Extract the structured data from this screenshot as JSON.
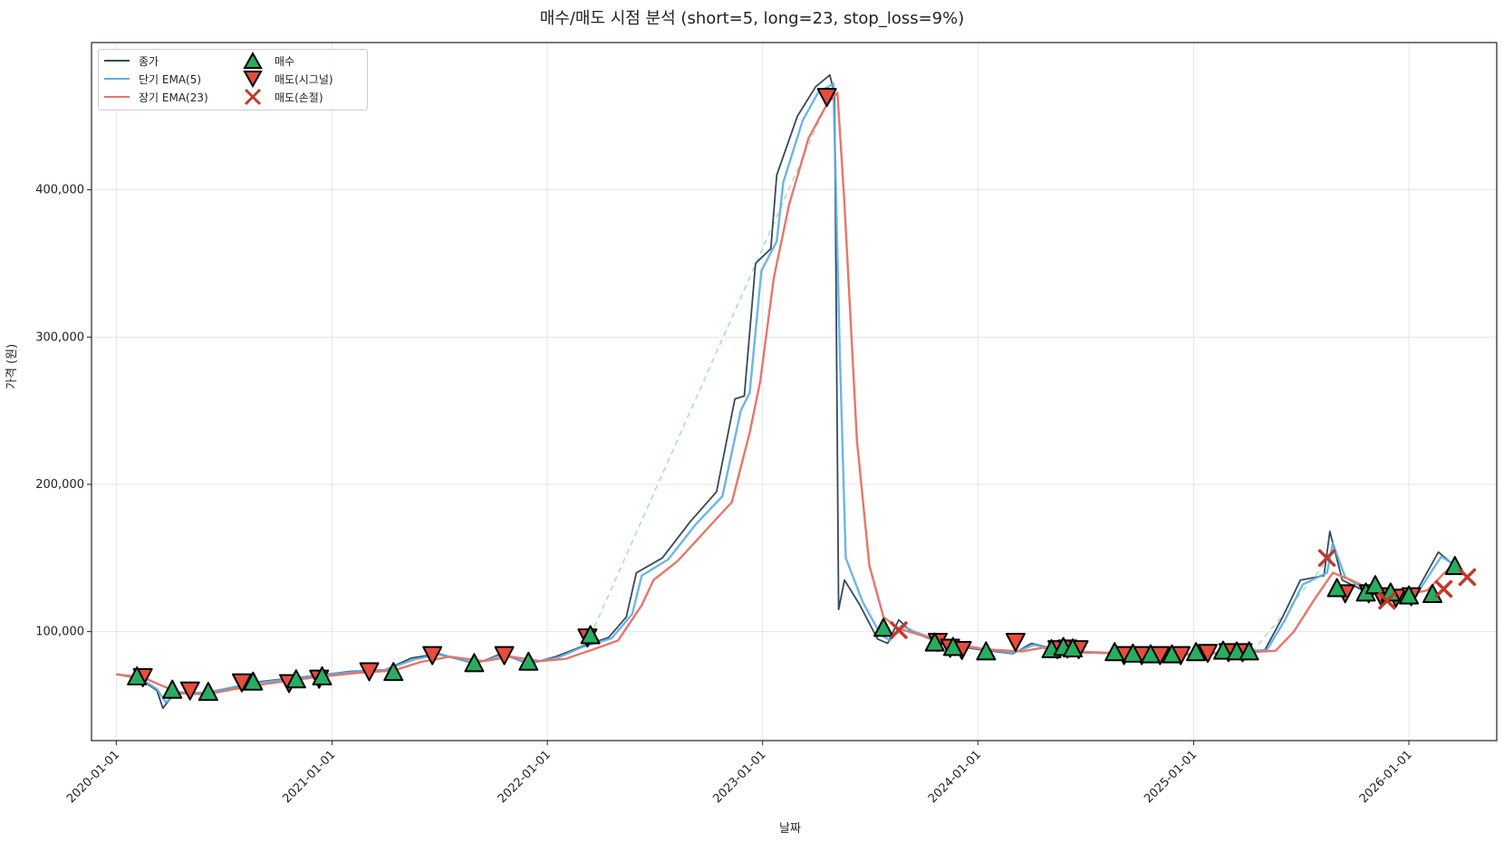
{
  "chart_data": {
    "type": "line",
    "title": "매수/매도 시점 분석 (short=5, long=23, stop_loss=9%)",
    "xlabel": "날짜",
    "ylabel": "가격 (원)",
    "xlim": [
      "2019-11-20",
      "2026-05-30"
    ],
    "ylim": [
      26000,
      500000
    ],
    "grid": true,
    "legend_position": "top-left",
    "x_ticks": [
      "2020-01-01",
      "2021-01-01",
      "2022-01-01",
      "2023-01-01",
      "2024-01-01",
      "2025-01-01",
      "2026-01-01"
    ],
    "y_ticks": [
      100000,
      200000,
      300000,
      400000
    ],
    "y_tick_labels": [
      "100,000",
      "200,000",
      "300,000",
      "400,000"
    ],
    "series": [
      {
        "name": "종가",
        "color": "#34495e",
        "points": [
          [
            "2020-01-01",
            71000
          ],
          [
            "2020-02-10",
            68000
          ],
          [
            "2020-03-10",
            60000
          ],
          [
            "2020-03-20",
            48000
          ],
          [
            "2020-04-10",
            59000
          ],
          [
            "2020-06-01",
            58000
          ],
          [
            "2020-07-15",
            62000
          ],
          [
            "2020-09-01",
            66000
          ],
          [
            "2020-10-15",
            68000
          ],
          [
            "2020-12-01",
            70000
          ],
          [
            "2021-02-01",
            73000
          ],
          [
            "2021-04-01",
            74000
          ],
          [
            "2021-05-15",
            82000
          ],
          [
            "2021-07-01",
            85000
          ],
          [
            "2021-09-01",
            78000
          ],
          [
            "2021-10-15",
            85000
          ],
          [
            "2021-12-01",
            78000
          ],
          [
            "2022-01-15",
            83000
          ],
          [
            "2022-03-01",
            90000
          ],
          [
            "2022-04-15",
            96000
          ],
          [
            "2022-05-15",
            110000
          ],
          [
            "2022-06-01",
            140000
          ],
          [
            "2022-07-15",
            150000
          ],
          [
            "2022-09-01",
            175000
          ],
          [
            "2022-10-15",
            195000
          ],
          [
            "2022-11-15",
            258000
          ],
          [
            "2022-12-01",
            260000
          ],
          [
            "2022-12-20",
            350000
          ],
          [
            "2023-01-15",
            360000
          ],
          [
            "2023-01-25",
            410000
          ],
          [
            "2023-03-01",
            450000
          ],
          [
            "2023-04-01",
            470000
          ],
          [
            "2023-04-25",
            478000
          ],
          [
            "2023-05-03",
            465000
          ],
          [
            "2023-05-10",
            115000
          ],
          [
            "2023-05-20",
            135000
          ],
          [
            "2023-06-15",
            118000
          ],
          [
            "2023-07-15",
            95000
          ],
          [
            "2023-08-01",
            92000
          ],
          [
            "2023-08-20",
            108000
          ],
          [
            "2023-09-10",
            100000
          ],
          [
            "2023-11-01",
            92000
          ],
          [
            "2024-01-01",
            88000
          ],
          [
            "2024-03-01",
            85000
          ],
          [
            "2024-04-01",
            92000
          ],
          [
            "2024-06-01",
            86000
          ],
          [
            "2024-09-01",
            85000
          ],
          [
            "2024-12-01",
            84000
          ],
          [
            "2025-03-01",
            86000
          ],
          [
            "2025-05-01",
            87000
          ],
          [
            "2025-06-01",
            110000
          ],
          [
            "2025-07-01",
            135000
          ],
          [
            "2025-08-10",
            138000
          ],
          [
            "2025-08-20",
            168000
          ],
          [
            "2025-09-10",
            135000
          ],
          [
            "2025-10-15",
            128000
          ],
          [
            "2025-12-01",
            122000
          ],
          [
            "2026-01-15",
            128000
          ],
          [
            "2026-02-20",
            154000
          ],
          [
            "2026-03-25",
            143000
          ]
        ]
      },
      {
        "name": "단기 EMA(5)",
        "color": "#5dade2",
        "points": [
          [
            "2020-01-01",
            71000
          ],
          [
            "2020-02-10",
            68500
          ],
          [
            "2020-03-10",
            61000
          ],
          [
            "2020-03-25",
            52000
          ],
          [
            "2020-04-15",
            58500
          ],
          [
            "2020-06-01",
            58500
          ],
          [
            "2020-07-15",
            62000
          ],
          [
            "2020-09-01",
            65500
          ],
          [
            "2020-10-15",
            67500
          ],
          [
            "2020-12-01",
            70000
          ],
          [
            "2021-02-01",
            72500
          ],
          [
            "2021-04-01",
            74000
          ],
          [
            "2021-05-20",
            81000
          ],
          [
            "2021-07-01",
            84500
          ],
          [
            "2021-09-01",
            78500
          ],
          [
            "2021-10-20",
            84500
          ],
          [
            "2021-12-01",
            78500
          ],
          [
            "2022-01-20",
            82500
          ],
          [
            "2022-03-01",
            89500
          ],
          [
            "2022-04-20",
            95500
          ],
          [
            "2022-05-25",
            112000
          ],
          [
            "2022-06-10",
            138000
          ],
          [
            "2022-07-25",
            149000
          ],
          [
            "2022-09-10",
            173000
          ],
          [
            "2022-10-25",
            192000
          ],
          [
            "2022-11-25",
            250000
          ],
          [
            "2022-12-10",
            262000
          ],
          [
            "2022-12-30",
            345000
          ],
          [
            "2023-01-25",
            365000
          ],
          [
            "2023-02-05",
            405000
          ],
          [
            "2023-03-10",
            447000
          ],
          [
            "2023-04-05",
            466000
          ],
          [
            "2023-05-01",
            472000
          ],
          [
            "2023-05-12",
            290000
          ],
          [
            "2023-05-22",
            150000
          ],
          [
            "2023-06-20",
            120000
          ],
          [
            "2023-07-20",
            98000
          ],
          [
            "2023-08-05",
            94000
          ],
          [
            "2023-08-25",
            104000
          ],
          [
            "2023-09-15",
            100000
          ],
          [
            "2023-11-01",
            93000
          ],
          [
            "2024-01-01",
            88500
          ],
          [
            "2024-03-01",
            85500
          ],
          [
            "2024-04-05",
            91000
          ],
          [
            "2024-06-01",
            86500
          ],
          [
            "2024-09-01",
            85000
          ],
          [
            "2024-12-01",
            84500
          ],
          [
            "2025-03-01",
            86000
          ],
          [
            "2025-05-05",
            87500
          ],
          [
            "2025-06-05",
            108000
          ],
          [
            "2025-07-05",
            132000
          ],
          [
            "2025-08-15",
            140000
          ],
          [
            "2025-08-25",
            160000
          ],
          [
            "2025-09-15",
            137000
          ],
          [
            "2025-10-20",
            128000
          ],
          [
            "2025-12-01",
            123000
          ],
          [
            "2026-01-20",
            129000
          ],
          [
            "2026-02-25",
            151000
          ],
          [
            "2026-03-25",
            144000
          ]
        ]
      },
      {
        "name": "장기 EMA(23)",
        "color": "#e8756a",
        "points": [
          [
            "2020-01-01",
            71000
          ],
          [
            "2020-02-15",
            69000
          ],
          [
            "2020-03-20",
            63000
          ],
          [
            "2020-04-20",
            58000
          ],
          [
            "2020-06-01",
            57500
          ],
          [
            "2020-07-20",
            61000
          ],
          [
            "2020-09-10",
            64500
          ],
          [
            "2020-10-25",
            67000
          ],
          [
            "2020-12-15",
            69500
          ],
          [
            "2021-02-15",
            72000
          ],
          [
            "2021-04-15",
            73500
          ],
          [
            "2021-06-01",
            79500
          ],
          [
            "2021-07-20",
            83000
          ],
          [
            "2021-09-15",
            80000
          ],
          [
            "2021-11-01",
            83000
          ],
          [
            "2021-12-20",
            80000
          ],
          [
            "2022-02-01",
            81500
          ],
          [
            "2022-03-20",
            88000
          ],
          [
            "2022-05-01",
            94000
          ],
          [
            "2022-06-10",
            118000
          ],
          [
            "2022-06-30",
            135000
          ],
          [
            "2022-08-10",
            148000
          ],
          [
            "2022-09-25",
            168000
          ],
          [
            "2022-11-10",
            188000
          ],
          [
            "2022-12-10",
            235000
          ],
          [
            "2022-12-28",
            270000
          ],
          [
            "2023-01-20",
            340000
          ],
          [
            "2023-02-15",
            390000
          ],
          [
            "2023-03-20",
            435000
          ],
          [
            "2023-04-20",
            458000
          ],
          [
            "2023-05-08",
            466000
          ],
          [
            "2023-05-20",
            390000
          ],
          [
            "2023-06-10",
            230000
          ],
          [
            "2023-07-01",
            145000
          ],
          [
            "2023-07-25",
            110000
          ],
          [
            "2023-08-20",
            102000
          ],
          [
            "2023-10-01",
            97000
          ],
          [
            "2023-11-15",
            92000
          ],
          [
            "2024-01-15",
            88000
          ],
          [
            "2024-03-15",
            86500
          ],
          [
            "2024-04-20",
            89000
          ],
          [
            "2024-06-15",
            86500
          ],
          [
            "2024-09-15",
            85000
          ],
          [
            "2024-12-15",
            84500
          ],
          [
            "2025-03-15",
            85500
          ],
          [
            "2025-05-20",
            87000
          ],
          [
            "2025-06-20",
            100000
          ],
          [
            "2025-07-25",
            122000
          ],
          [
            "2025-08-25",
            140000
          ],
          [
            "2025-09-25",
            135000
          ],
          [
            "2025-11-01",
            128000
          ],
          [
            "2025-12-15",
            124000
          ],
          [
            "2026-02-01",
            128000
          ],
          [
            "2026-03-10",
            143000
          ],
          [
            "2026-03-25",
            143000
          ]
        ]
      },
      {
        "name": "",
        "color": "#a9dfbf",
        "style": "dashed",
        "points": [
          [
            "2022-03-15",
            97000
          ],
          [
            "2023-04-25",
            463000
          ]
        ]
      },
      {
        "name": "",
        "color": "#a9dfbf",
        "style": "dashed",
        "points": [
          [
            "2025-04-10",
            86000
          ],
          [
            "2025-08-20",
            150000
          ]
        ]
      }
    ],
    "markers": [
      {
        "name": "매수",
        "shape": "triangle-up",
        "color": "#27ae60",
        "points": [
          [
            "2020-02-05",
            69000
          ],
          [
            "2020-04-05",
            60000
          ],
          [
            "2020-06-05",
            58500
          ],
          [
            "2020-08-20",
            65500
          ],
          [
            "2020-11-01",
            67000
          ],
          [
            "2020-12-15",
            69000
          ],
          [
            "2021-04-15",
            72000
          ],
          [
            "2021-08-30",
            78000
          ],
          [
            "2021-11-30",
            79000
          ],
          [
            "2022-03-15",
            97000
          ],
          [
            "2023-07-25",
            102000
          ],
          [
            "2023-10-20",
            92000
          ],
          [
            "2023-11-20",
            89000
          ],
          [
            "2024-01-15",
            86000
          ],
          [
            "2024-05-05",
            87500
          ],
          [
            "2024-05-25",
            89000
          ],
          [
            "2024-06-10",
            88000
          ],
          [
            "2024-08-20",
            85500
          ],
          [
            "2024-09-20",
            84500
          ],
          [
            "2024-10-20",
            84000
          ],
          [
            "2024-11-25",
            84000
          ],
          [
            "2025-01-05",
            85500
          ],
          [
            "2025-02-20",
            86500
          ],
          [
            "2025-03-15",
            86000
          ],
          [
            "2025-04-05",
            86000
          ],
          [
            "2025-09-01",
            129000
          ],
          [
            "2025-10-20",
            126000
          ],
          [
            "2025-11-05",
            131000
          ],
          [
            "2025-12-01",
            126000
          ],
          [
            "2026-01-01",
            124000
          ],
          [
            "2026-02-10",
            125000
          ],
          [
            "2026-03-20",
            144000
          ]
        ]
      },
      {
        "name": "매도(시그널)",
        "shape": "triangle-down",
        "color": "#e74c3c",
        "points": [
          [
            "2020-02-15",
            69000
          ],
          [
            "2020-05-05",
            60000
          ],
          [
            "2020-08-01",
            65500
          ],
          [
            "2020-10-20",
            65000
          ],
          [
            "2020-12-10",
            68000
          ],
          [
            "2021-03-05",
            73000
          ],
          [
            "2021-06-20",
            84000
          ],
          [
            "2021-10-20",
            84000
          ],
          [
            "2022-03-10",
            96000
          ],
          [
            "2023-04-20",
            463000
          ],
          [
            "2023-10-25",
            93000
          ],
          [
            "2023-11-15",
            89000
          ],
          [
            "2023-12-05",
            87500
          ],
          [
            "2024-03-05",
            93000
          ],
          [
            "2024-05-15",
            88000
          ],
          [
            "2024-06-01",
            88500
          ],
          [
            "2024-06-20",
            88000
          ],
          [
            "2024-09-05",
            84000
          ],
          [
            "2024-10-05",
            84000
          ],
          [
            "2024-11-05",
            84000
          ],
          [
            "2024-12-10",
            84000
          ],
          [
            "2025-01-25",
            85500
          ],
          [
            "2025-03-01",
            86000
          ],
          [
            "2025-03-25",
            86000
          ],
          [
            "2025-09-15",
            126000
          ],
          [
            "2025-10-25",
            126000
          ],
          [
            "2025-11-15",
            124000
          ],
          [
            "2025-12-10",
            123000
          ],
          [
            "2026-01-05",
            124000
          ]
        ]
      },
      {
        "name": "매도(손절)",
        "shape": "x",
        "color": "#c0392b",
        "points": [
          [
            "2023-08-20",
            101000
          ],
          [
            "2025-08-15",
            150000
          ],
          [
            "2025-11-25",
            121000
          ],
          [
            "2026-03-01",
            129000
          ],
          [
            "2026-04-10",
            137000
          ]
        ]
      }
    ]
  }
}
